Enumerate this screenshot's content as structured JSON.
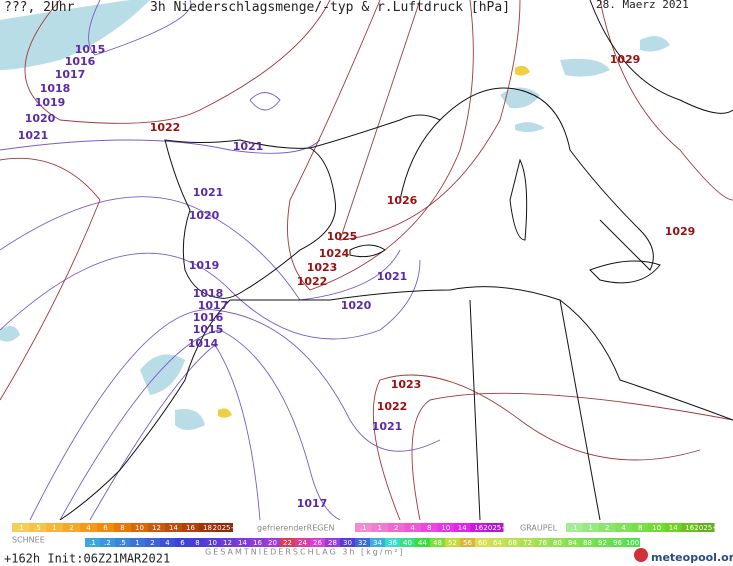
{
  "header": {
    "left": "???, 2Uhr",
    "title": "3h Niederschlagsmenge/-typ & r.Luftdruck [hPa]",
    "date": "28. Maerz 2021"
  },
  "isobar_labels": [
    "1015",
    "1016",
    "1017",
    "1018",
    "1019",
    "1020",
    "1021",
    "1022",
    "1021",
    "1021",
    "1020",
    "1019",
    "1018",
    "1017",
    "1016",
    "1015",
    "1014",
    "1026",
    "1025",
    "1024",
    "1023",
    "1022",
    "1021",
    "1020",
    "1023",
    "1022",
    "1021",
    "1017",
    "1029",
    "1029"
  ],
  "legend": {
    "snow_scale": [
      ".1",
      ".5",
      "1",
      "2",
      "4",
      "6",
      "8",
      "10",
      "12",
      "14",
      "16",
      "18",
      "2025+"
    ],
    "freezing_rain_label": "gefrierenderREGEN",
    "freezing_rain_scale": [
      ".1",
      "1",
      "2",
      "4",
      "8",
      "10",
      "14",
      "16",
      "2025+"
    ],
    "graupel_label": "GRAUPEL",
    "graupel_scale": [
      ".1",
      "1",
      "2",
      "4",
      "8",
      "10",
      "14",
      "16",
      "2025+"
    ],
    "snow_label": "SCHNEE",
    "total_scale": [
      ".1",
      ".2",
      ".5",
      "1",
      "2",
      "4",
      "6",
      "8",
      "10",
      "12",
      "14",
      "16",
      "20",
      "22",
      "24",
      "26",
      "28",
      "30",
      "32",
      "34",
      "36",
      "40",
      "44",
      "48",
      "52",
      "56",
      "60",
      "64",
      "68",
      "72",
      "76",
      "80",
      "84",
      "88",
      "92",
      "96",
      "100"
    ],
    "total_label": "GESAMTNIEDERSCHLAG 3h [kg/m²]"
  },
  "footer": {
    "run": "+162h Init:06Z21MAR2021",
    "brand": "meteopool.org"
  }
}
